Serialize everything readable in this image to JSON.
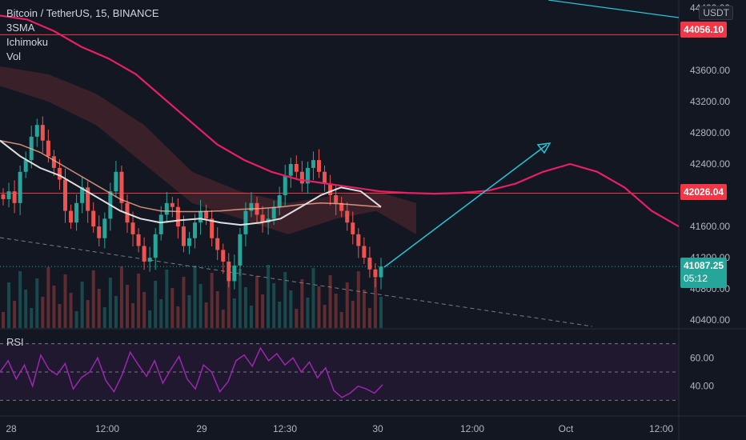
{
  "header": {
    "symbol_title": "Bitcoin / TetherUS, 15, BINANCE",
    "indicators": [
      "3SMA",
      "Ichimoku",
      "Vol"
    ]
  },
  "price_axis": {
    "unit": "USDT",
    "ticks": [
      "44400.00",
      "43600.00",
      "43200.00",
      "42800.00",
      "42400.00",
      "41600.00",
      "41200.00",
      "40800.00",
      "40400.00"
    ]
  },
  "price_labels": {
    "upper": "44056.10",
    "middle": "42026.04",
    "last_price": "41087.25",
    "countdown": "05:12"
  },
  "time_axis": {
    "ticks": [
      "28",
      "12:00",
      "29",
      "12:30",
      "30",
      "12:00",
      "Oct",
      "12:00"
    ]
  },
  "rsi": {
    "label": "RSI",
    "ticks": [
      "60.00",
      "40.00"
    ]
  },
  "colors": {
    "background": "#131722",
    "up": "#26a69a",
    "down": "#ef5350",
    "sma_fast": "#e0e0e0",
    "sma_slow": "#f48fb1",
    "ichimoku": "#e91e63",
    "rsi": "#9c27b0",
    "arrow": "#26c6da",
    "horizontal_line": "#f23645"
  },
  "chart_data": {
    "type": "candlestick",
    "price_range": [
      40300,
      44500
    ],
    "horizontal_levels": [
      44056.1,
      42026.04
    ],
    "last_price": 41087.25,
    "candles_close_path": [
      41950,
      42050,
      41900,
      42300,
      42450,
      42750,
      42900,
      42700,
      42500,
      42350,
      42200,
      41800,
      41650,
      41900,
      42100,
      41800,
      41600,
      41450,
      41700,
      42050,
      42300,
      41900,
      41650,
      41500,
      41350,
      41150,
      41200,
      41500,
      41750,
      41900,
      41850,
      41600,
      41350,
      41450,
      41650,
      41800,
      41700,
      41450,
      41300,
      41150,
      40900,
      41100,
      41500,
      41800,
      41900,
      41750,
      41650,
      41700,
      41850,
      42000,
      42250,
      42400,
      42300,
      42150,
      42350,
      42450,
      42300,
      42150,
      42000,
      41900,
      41800,
      41650,
      41500,
      41350,
      41200,
      41050,
      40950,
      41087
    ],
    "sma_fast": [
      42700,
      42500,
      42350,
      42250,
      42100,
      41950,
      41800,
      41700,
      41650,
      41680,
      41700,
      41650,
      41620,
      41650,
      41700,
      41850,
      42000,
      42100,
      42050,
      41850
    ],
    "sma_slow": [
      42700,
      42650,
      42550,
      42400,
      42250,
      42100,
      41950,
      41850,
      41800,
      41790,
      41790,
      41800,
      41820,
      41830,
      41850,
      41880,
      41900,
      41890,
      41870,
      41850
    ],
    "ichimoku_cloud_line": [
      44300,
      44250,
      44100,
      43900,
      43750,
      43550,
      43250,
      42950,
      42650,
      42450,
      42300,
      42200,
      42150,
      42100,
      42050,
      42030,
      42020,
      42030,
      42060,
      42150,
      42300,
      42400,
      42300,
      42100,
      41800,
      41600
    ],
    "rsi_values": [
      50,
      58,
      45,
      55,
      40,
      62,
      52,
      48,
      56,
      38,
      46,
      50,
      60,
      44,
      36,
      48,
      64,
      55,
      47,
      58,
      42,
      52,
      61,
      45,
      38,
      55,
      50,
      36,
      43,
      58,
      62,
      54,
      67,
      58,
      63,
      55,
      60,
      50,
      57,
      46,
      53,
      37,
      32,
      35,
      40,
      38,
      35,
      41
    ],
    "rsi_range": [
      20,
      80
    ],
    "rsi_bands": [
      70,
      50,
      30
    ]
  }
}
